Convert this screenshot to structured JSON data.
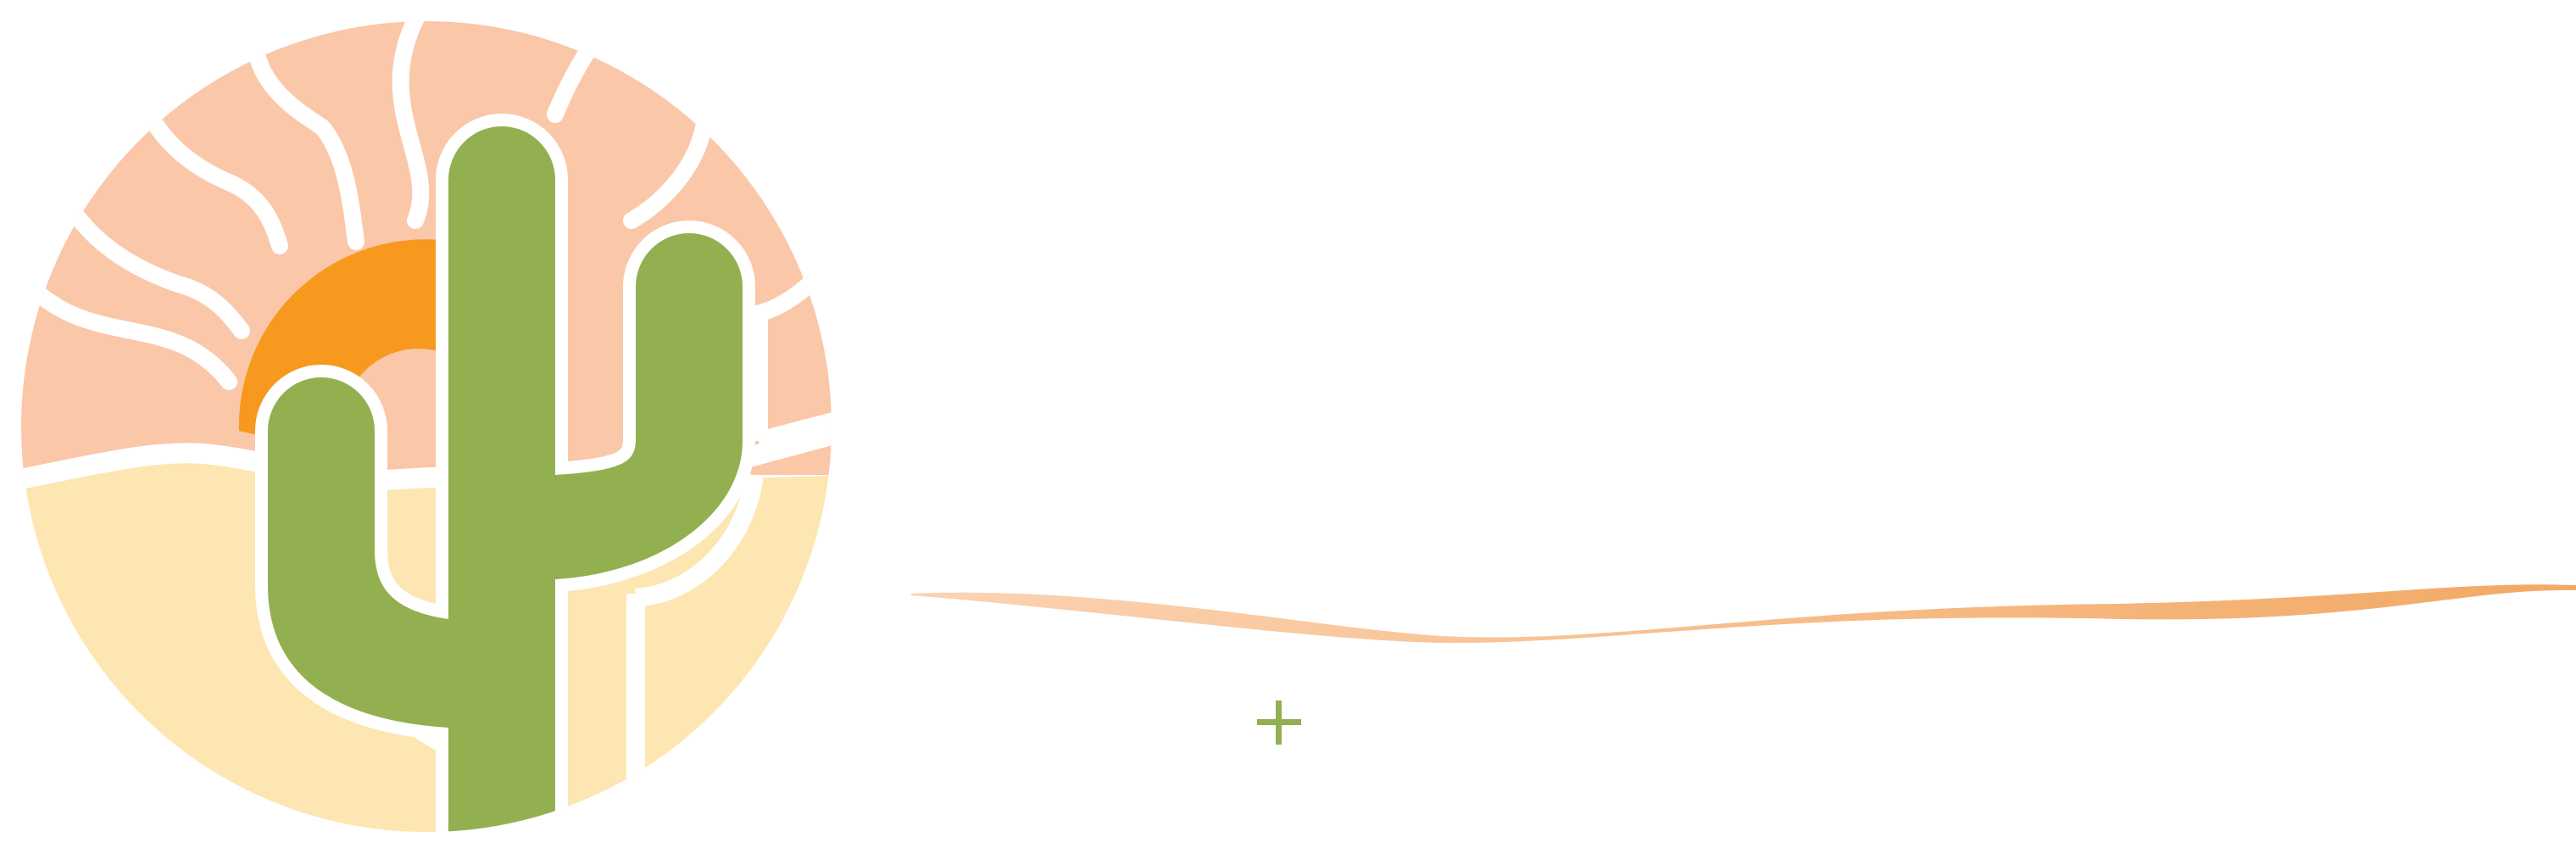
{
  "logo": {
    "colors": {
      "background": "#ffffff",
      "rays": "#fac7a9",
      "sun": "#f7991f",
      "cactus": "#92b04f",
      "sand": "#fde6b1",
      "wave_light": "#fcd3b3",
      "wave_dark": "#f2a965",
      "plus": "#92b04f",
      "outline": "#ffffff"
    },
    "icons": [
      "sunburst-rays-icon",
      "setting-sun-icon",
      "saguaro-cactus-icon",
      "desert-sand-icon",
      "horizon-wave-icon",
      "plus-icon"
    ]
  }
}
